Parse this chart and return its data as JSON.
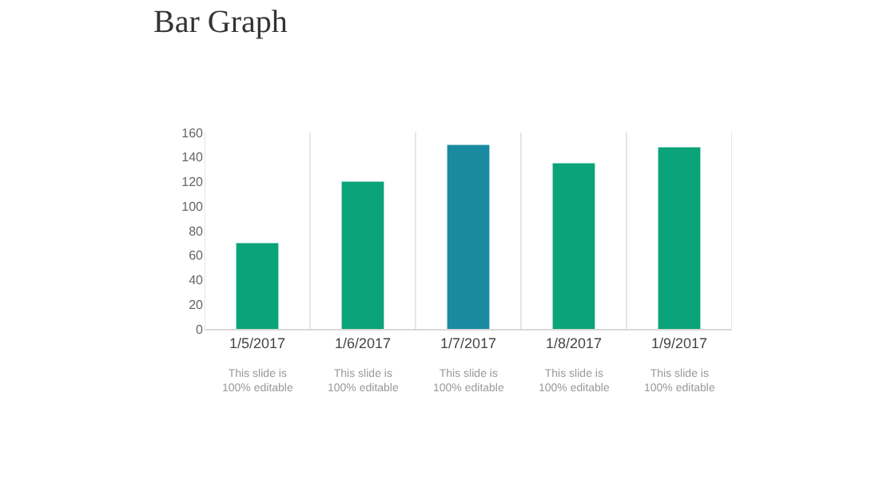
{
  "chart_data": {
    "type": "bar",
    "title": "Bar Graph",
    "categories": [
      "1/5/2017",
      "1/6/2017",
      "1/7/2017",
      "1/8/2017",
      "1/9/2017"
    ],
    "values": [
      70,
      120,
      150,
      135,
      148
    ],
    "colors": [
      "#0aa37a",
      "#0aa37a",
      "#1a8aa0",
      "#0aa37a",
      "#0aa37a"
    ],
    "ylim": [
      0,
      160
    ],
    "yticks": [
      0,
      20,
      40,
      60,
      80,
      100,
      120,
      140,
      160
    ],
    "grid": "x",
    "annotations": [
      "This slide is\n100% editable",
      "This slide is\n100% editable",
      "This slide is\n100% editable",
      "This slide is\n100% editable",
      "This slide is\n100% editable"
    ]
  }
}
